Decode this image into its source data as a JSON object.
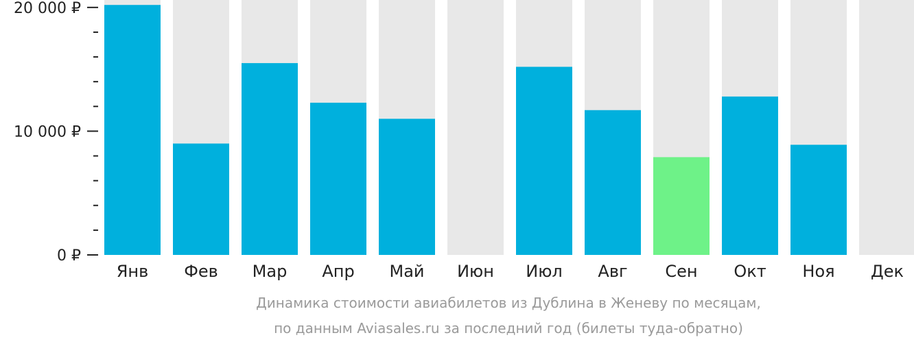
{
  "chart_data": {
    "type": "bar",
    "categories": [
      "Янв",
      "Фев",
      "Мар",
      "Апр",
      "Май",
      "Июн",
      "Июл",
      "Авг",
      "Сен",
      "Окт",
      "Ноя",
      "Дек"
    ],
    "values": [
      20200,
      9000,
      15500,
      12300,
      11000,
      null,
      15200,
      11700,
      7900,
      12800,
      8900,
      null
    ],
    "ylim": [
      0,
      20600
    ],
    "y_ticks": [
      {
        "value": 0,
        "label": "0 ₽"
      },
      {
        "value": 10000,
        "label": "10 000 ₽"
      },
      {
        "value": 20000,
        "label": "20 000 ₽"
      }
    ],
    "y_minor_tick_step": 2000,
    "highlight_index": 8,
    "colors": {
      "bar": "#00b0dd",
      "highlight": "#6ef288",
      "background_bar": "#e8e8e8",
      "axis": "#222222"
    },
    "legend": "none",
    "grid": false
  },
  "caption": {
    "line1": "Динамика стоимости авиабилетов из Дублина в Женеву по месяцам,",
    "line2": "по данным Aviasales.ru за последний год (билеты туда-обратно)"
  }
}
